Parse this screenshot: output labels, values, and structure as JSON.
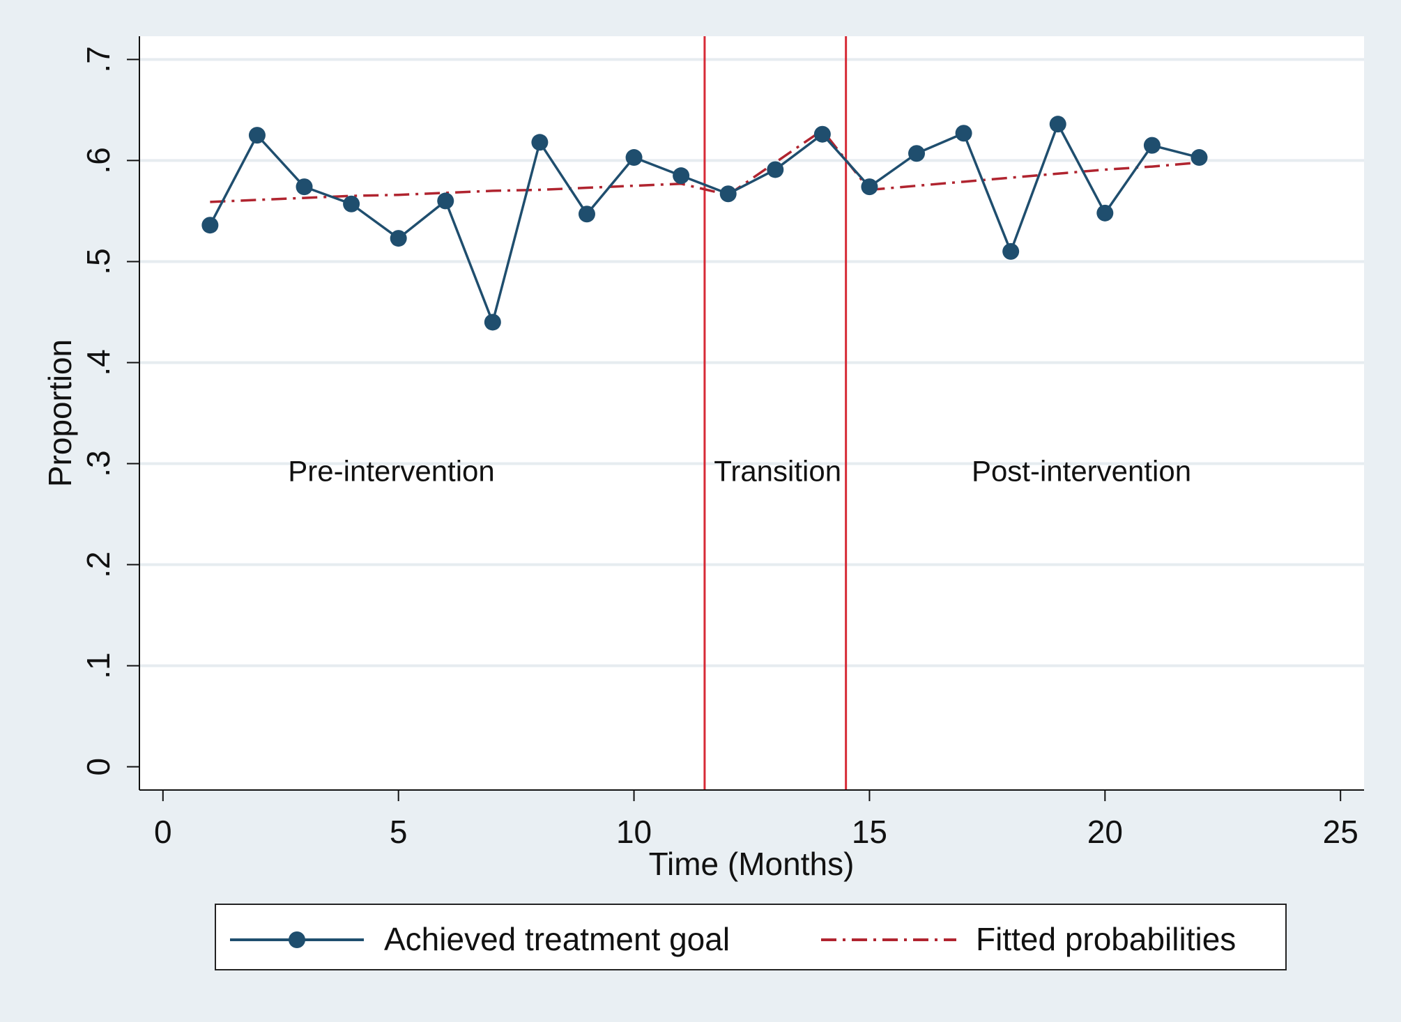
{
  "chart_data": {
    "type": "line",
    "title": "",
    "xlabel": "Time (Months)",
    "ylabel": "Proportion",
    "xlim": [
      -0.5,
      25.5
    ],
    "ylim": [
      -0.023,
      0.723
    ],
    "x_ticks": [
      0,
      5,
      10,
      15,
      20,
      25
    ],
    "x_tick_labels": [
      "0",
      "5",
      "10",
      "15",
      "20",
      "25"
    ],
    "y_ticks": [
      0,
      0.1,
      0.2,
      0.3,
      0.4,
      0.5,
      0.6,
      0.7
    ],
    "y_tick_labels": [
      "0",
      ".1",
      ".2",
      ".3",
      ".4",
      ".5",
      ".6",
      ".7"
    ],
    "grid": "horizontal",
    "legend_position": "bottom",
    "series": [
      {
        "name": "Achieved treatment goal",
        "style": "solid line with filled circle markers",
        "color": "#1f4e6e",
        "x": [
          1,
          2,
          3,
          4,
          5,
          6,
          7,
          8,
          9,
          10,
          11,
          12,
          13,
          14,
          15,
          16,
          17,
          18,
          19,
          20,
          21,
          22
        ],
        "y": [
          0.536,
          0.625,
          0.574,
          0.557,
          0.523,
          0.56,
          0.44,
          0.618,
          0.547,
          0.603,
          0.585,
          0.567,
          0.591,
          0.626,
          0.574,
          0.607,
          0.627,
          0.51,
          0.636,
          0.548,
          0.615,
          0.603
        ]
      },
      {
        "name": "Fitted probabilities",
        "style": "dash-dot line",
        "color": "#b0242f",
        "segments": [
          {
            "x": [
              1,
              2,
              3,
              4,
              5,
              6,
              7,
              8,
              9,
              10,
              11,
              12
            ],
            "y": [
              0.559,
              0.561,
              0.563,
              0.565,
              0.566,
              0.568,
              0.57,
              0.571,
              0.573,
              0.575,
              0.577,
              0.566
            ]
          },
          {
            "x": [
              12,
              13,
              14,
              15
            ],
            "y": [
              0.566,
              0.598,
              0.63,
              0.571
            ]
          },
          {
            "x": [
              15,
              16,
              17,
              18,
              19,
              20,
              21,
              22
            ],
            "y": [
              0.571,
              0.575,
              0.579,
              0.583,
              0.587,
              0.591,
              0.594,
              0.598
            ]
          }
        ]
      }
    ],
    "vertical_lines": [
      {
        "x": 11.5,
        "color": "#d62a36"
      },
      {
        "x": 14.5,
        "color": "#d62a36"
      }
    ],
    "annotations": [
      {
        "text": "Pre-intervention",
        "x": 4.85,
        "y": 0.293
      },
      {
        "text": "Transition",
        "x": 13.05,
        "y": 0.293
      },
      {
        "text": "Post-intervention",
        "x": 19.5,
        "y": 0.293
      }
    ]
  }
}
